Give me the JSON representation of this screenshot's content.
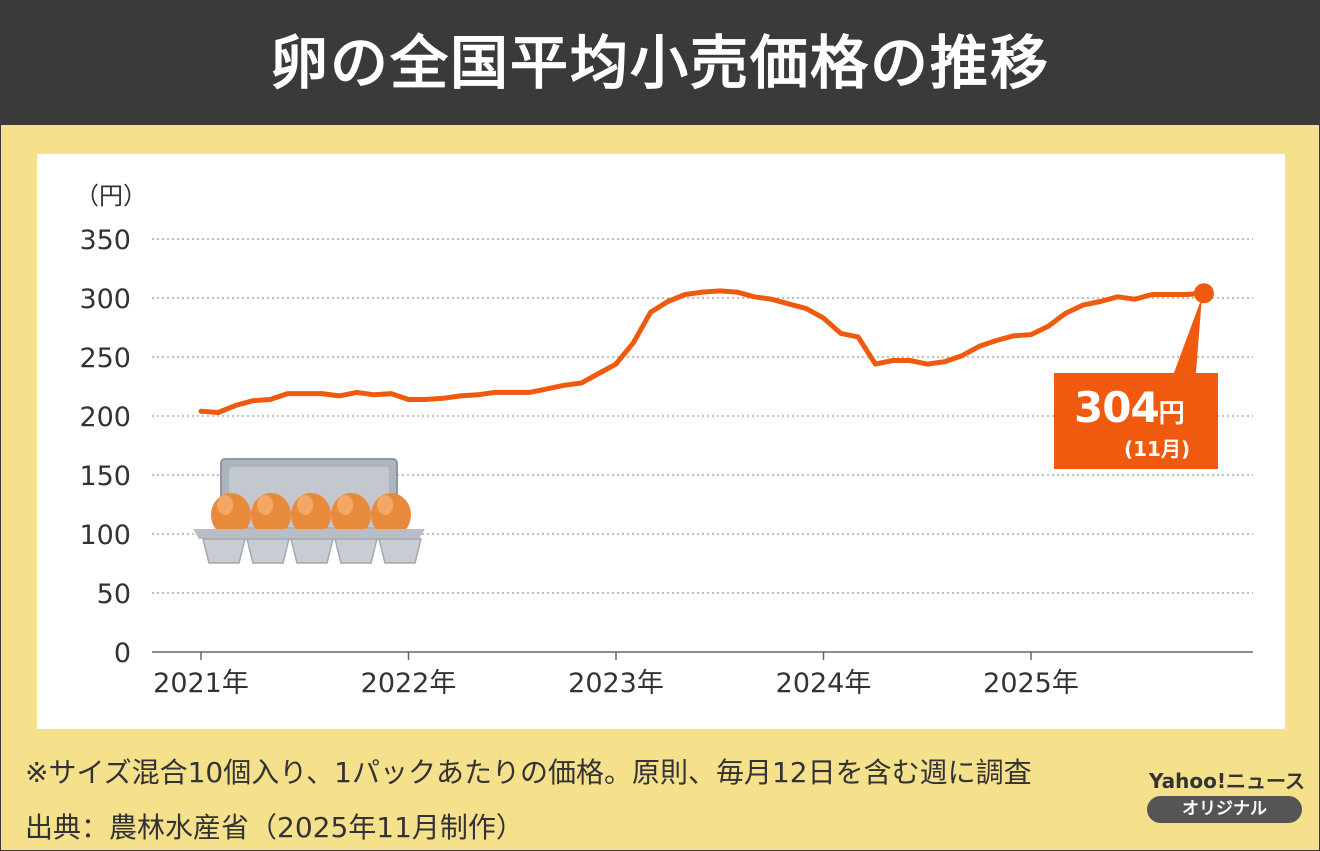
{
  "header": {
    "title": "卵の全国平均小売価格の推移"
  },
  "chart_data": {
    "type": "line",
    "title": "卵の全国平均小売価格の推移",
    "unit_label": "（円）",
    "ylim": [
      0,
      350
    ],
    "yticks": [
      "0",
      "50",
      "100",
      "150",
      "200",
      "250",
      "300",
      "350"
    ],
    "xticks": [
      "2021年",
      "2022年",
      "2023年",
      "2024年",
      "2025年"
    ],
    "grid": true,
    "line_color": "#f05a0e",
    "series": [
      {
        "x": [
          "2021-01",
          "2021-02",
          "2021-03",
          "2021-04",
          "2021-05",
          "2021-06",
          "2021-07",
          "2021-08",
          "2021-09",
          "2021-10",
          "2021-11",
          "2021-12",
          "2022-01",
          "2022-02",
          "2022-03",
          "2022-04",
          "2022-05",
          "2022-06",
          "2022-07",
          "2022-08",
          "2022-09",
          "2022-10",
          "2022-11",
          "2022-12",
          "2023-01",
          "2023-02",
          "2023-03",
          "2023-04",
          "2023-05",
          "2023-06",
          "2023-07",
          "2023-08",
          "2023-09",
          "2023-10",
          "2023-11",
          "2023-12",
          "2024-01",
          "2024-02",
          "2024-03",
          "2024-04",
          "2024-05",
          "2024-06",
          "2024-07",
          "2024-08",
          "2024-09",
          "2024-10",
          "2024-11",
          "2024-12",
          "2025-01",
          "2025-02",
          "2025-03",
          "2025-04",
          "2025-05",
          "2025-06",
          "2025-07",
          "2025-08",
          "2025-09",
          "2025-10",
          "2025-11"
        ],
        "values": [
          204,
          203,
          209,
          213,
          214,
          219,
          219,
          219,
          217,
          220,
          218,
          219,
          214,
          214,
          215,
          217,
          218,
          220,
          220,
          220,
          223,
          226,
          228,
          236,
          244,
          262,
          288,
          297,
          303,
          305,
          306,
          305,
          301,
          299,
          295,
          291,
          283,
          270,
          267,
          244,
          247,
          247,
          244,
          246,
          251,
          259,
          264,
          268,
          269,
          276,
          287,
          294,
          297,
          301,
          299,
          303,
          303,
          303,
          304
        ]
      }
    ],
    "annotation": {
      "value": "304",
      "unit": "円",
      "month": "(11月)"
    }
  },
  "footer": {
    "note": "※サイズ混合10個入り、1パックあたりの価格。原則、毎月12日を含む週に調査",
    "source": "出典：農林水産省（2025年11月制作）",
    "brand": "Yahoo!ニュース",
    "brand_badge": "オリジナル"
  },
  "illustration": {
    "icon": "egg-carton-icon"
  }
}
